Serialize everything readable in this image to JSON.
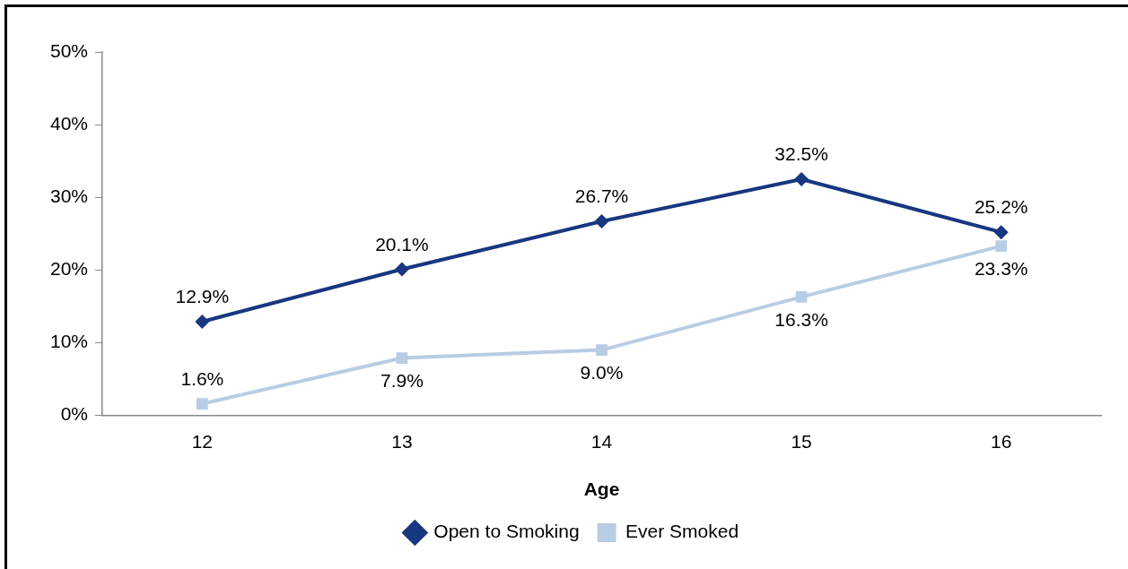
{
  "chart_data": {
    "type": "line",
    "xlabel": "Age",
    "categories": [
      "12",
      "13",
      "14",
      "15",
      "16"
    ],
    "series": [
      {
        "name": "Open to Smoking",
        "color": "#17377f",
        "marker": "diamond",
        "values": [
          12.9,
          20.1,
          26.7,
          32.5,
          25.2
        ],
        "value_labels": [
          "12.9%",
          "20.1%",
          "26.7%",
          "32.5%",
          "25.2%"
        ]
      },
      {
        "name": "Ever Smoked",
        "color": "#b8cce4",
        "marker": "square",
        "values": [
          1.6,
          7.9,
          9.0,
          16.3,
          23.3
        ],
        "value_labels": [
          "1.6%",
          "7.9%",
          "9.0%",
          "16.3%",
          "23.3%"
        ]
      }
    ],
    "ylim": [
      0,
      50
    ],
    "yticks": [
      {
        "value": 0,
        "label": "0%"
      },
      {
        "value": 10,
        "label": "10%"
      },
      {
        "value": 20,
        "label": "20%"
      },
      {
        "value": 30,
        "label": "30%"
      },
      {
        "value": 40,
        "label": "40%"
      },
      {
        "value": 50,
        "label": "50%"
      }
    ],
    "grid": false,
    "legend": "bottom",
    "line_style": "solid"
  }
}
